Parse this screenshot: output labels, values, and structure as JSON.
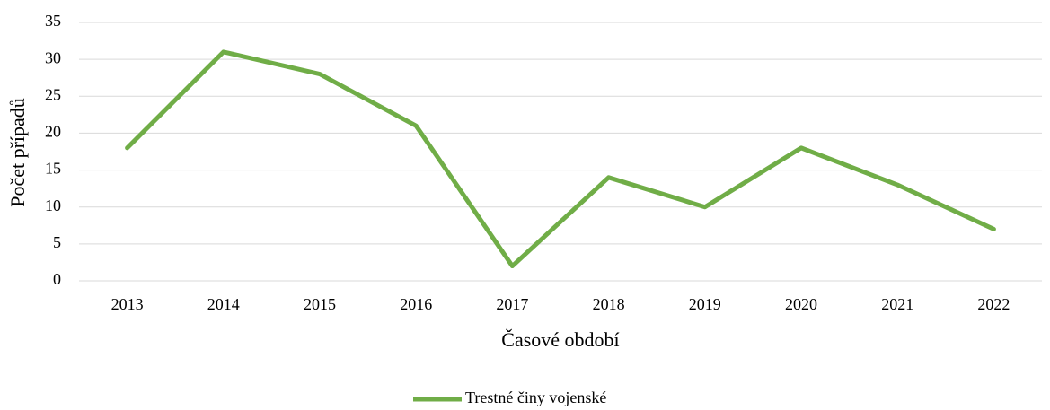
{
  "chart_data": {
    "type": "line",
    "x_label": "Časové období",
    "y_label": "Počet případů",
    "categories": [
      "2013",
      "2014",
      "2015",
      "2016",
      "2017",
      "2018",
      "2019",
      "2020",
      "2021",
      "2022"
    ],
    "series": [
      {
        "name": "Trestné činy vojenské",
        "color": "#70ad47",
        "values": [
          18,
          31,
          28,
          21,
          2,
          14,
          10,
          18,
          13,
          7
        ]
      }
    ],
    "ylim": [
      0,
      35
    ],
    "yticks": [
      0,
      5,
      10,
      15,
      20,
      25,
      30,
      35
    ],
    "grid": true,
    "legend": "bottom"
  }
}
